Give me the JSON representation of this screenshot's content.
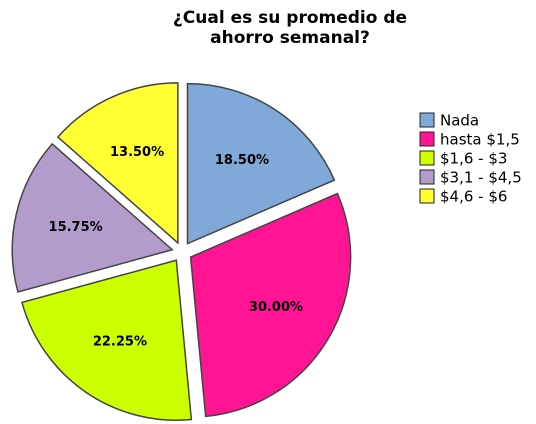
{
  "chart_data": {
    "type": "pie",
    "title": "¿Cual es su promedio de ahorro semanal?",
    "categories": [
      "Nada",
      "hasta $1,5",
      "$1,6 - $3",
      "$3,1 - $4,5",
      "$4,6 - $6"
    ],
    "values": [
      18.5,
      30,
      22.25,
      15.75,
      13.5
    ],
    "value_labels": [
      "18.50%",
      "30.00%",
      "22.25%",
      "15.75%",
      "13.50%"
    ],
    "colors": [
      "#80a8d8",
      "#ff1493",
      "#ccff00",
      "#b39ccc",
      "#ffff33"
    ],
    "legend": "right"
  }
}
